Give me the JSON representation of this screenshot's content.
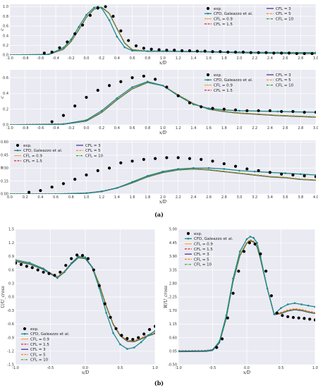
{
  "figure": {
    "caption_a": "(a)",
    "caption_b": "(b)"
  },
  "colors": {
    "exp": "#000000",
    "cfd": "#1b8a8e",
    "cfl09": "#f5a142",
    "cfl15": "#d62728",
    "cfl3": "#3a2a8a",
    "cfl5": "#ff7f0e",
    "cfl10": "#2ca02c",
    "panel_bg": "#eaeaf2",
    "grid": "#ffffff"
  },
  "legend_labels": {
    "exp": "exp.",
    "cfd": "CFD, Galeazzo et al.",
    "cfl09": "CFL = 0.9",
    "cfl15": "CFL = 1.5",
    "cfl3": "CFL = 3",
    "cfl5": "CFL = 5",
    "cfl10": "CFL = 10"
  },
  "chart_data": [
    {
      "id": "p1",
      "type": "line",
      "xlabel": "x/D",
      "ylabel": "c",
      "xlim": [
        -1.0,
        3.0
      ],
      "ylim": [
        0,
        1.05
      ],
      "xticks": [
        "-1.0",
        "-0.8",
        "-0.6",
        "-0.4",
        "-0.2",
        "0.0",
        "0.2",
        "0.4",
        "0.6",
        "0.8",
        "1.0",
        "1.2",
        "1.4",
        "1.6",
        "1.8",
        "2.0",
        "2.2",
        "2.4",
        "2.6",
        "2.8",
        "3.0"
      ],
      "yticks": [
        "0.0",
        "0.2",
        "0.4",
        "0.6",
        "0.8",
        "1.0"
      ],
      "grid": true,
      "legend": "upper-right",
      "exp": {
        "x": [
          -0.55,
          -0.45,
          -0.35,
          -0.25,
          -0.15,
          -0.05,
          0.05,
          0.15,
          0.25,
          0.35,
          0.45,
          0.55,
          0.65,
          0.75,
          0.85,
          0.95,
          1.05,
          1.15,
          1.25,
          1.35,
          1.45,
          1.55,
          1.65,
          1.75,
          1.85,
          1.95,
          2.05,
          2.15,
          2.25,
          2.35,
          2.45,
          2.55,
          2.65,
          2.75,
          2.85,
          2.95
        ],
        "y": [
          0.04,
          0.06,
          0.15,
          0.27,
          0.44,
          0.62,
          0.82,
          0.97,
          1.0,
          0.8,
          0.5,
          0.3,
          0.19,
          0.14,
          0.12,
          0.11,
          0.1,
          0.1,
          0.09,
          0.09,
          0.08,
          0.08,
          0.07,
          0.07,
          0.06,
          0.06,
          0.06,
          0.05,
          0.05,
          0.05,
          0.04,
          0.04,
          0.04,
          0.03,
          0.03,
          0.03
        ]
      },
      "cfd": {
        "x": [
          -1.0,
          -0.5,
          -0.3,
          -0.2,
          -0.1,
          0.0,
          0.1,
          0.15,
          0.2,
          0.3,
          0.4,
          0.5,
          0.6,
          0.8,
          1.0,
          1.5,
          2.0,
          2.5,
          3.0
        ],
        "y": [
          0.0,
          0.01,
          0.15,
          0.32,
          0.58,
          0.83,
          0.98,
          1.0,
          0.97,
          0.72,
          0.38,
          0.16,
          0.09,
          0.08,
          0.08,
          0.07,
          0.06,
          0.05,
          0.05
        ]
      },
      "cfl": {
        "x": [
          -1.0,
          -0.5,
          -0.3,
          -0.2,
          -0.1,
          0.0,
          0.1,
          0.2,
          0.3,
          0.4,
          0.5,
          0.6,
          0.8,
          1.0,
          1.5,
          2.0,
          2.5,
          3.0
        ],
        "y": [
          0.0,
          0.01,
          0.12,
          0.28,
          0.52,
          0.78,
          0.95,
          0.99,
          0.86,
          0.55,
          0.25,
          0.11,
          0.08,
          0.08,
          0.07,
          0.05,
          0.04,
          0.03
        ]
      }
    },
    {
      "id": "p2",
      "type": "line",
      "xlabel": "x/D",
      "ylabel": "c",
      "xlim": [
        -1.0,
        3.0
      ],
      "ylim": [
        0,
        0.7
      ],
      "xticks": [
        "-1.0",
        "-0.8",
        "-0.6",
        "-0.4",
        "-0.2",
        "0.0",
        "0.2",
        "0.4",
        "0.6",
        "0.8",
        "1.0",
        "1.2",
        "1.4",
        "1.6",
        "1.8",
        "2.0",
        "2.2",
        "2.4",
        "2.6",
        "2.8",
        "3.0"
      ],
      "yticks": [
        "0.0",
        "0.2",
        "0.4",
        "0.6"
      ],
      "grid": true,
      "legend": "upper-right",
      "exp": {
        "x": [
          -0.45,
          -0.3,
          -0.15,
          0.0,
          0.15,
          0.3,
          0.45,
          0.6,
          0.75,
          0.9,
          1.05,
          1.2,
          1.35,
          1.5,
          1.65,
          1.8,
          1.95,
          2.1,
          2.25,
          2.4,
          2.55,
          2.7,
          2.85,
          3.0
        ],
        "y": [
          0.04,
          0.12,
          0.24,
          0.35,
          0.44,
          0.5,
          0.55,
          0.6,
          0.62,
          0.58,
          0.48,
          0.37,
          0.28,
          0.23,
          0.21,
          0.2,
          0.19,
          0.18,
          0.18,
          0.18,
          0.17,
          0.17,
          0.16,
          0.16
        ]
      },
      "cfd": {
        "x": [
          -1.0,
          -0.3,
          0.0,
          0.2,
          0.4,
          0.6,
          0.8,
          1.0,
          1.2,
          1.4,
          1.6,
          1.8,
          2.0,
          2.5,
          3.0
        ],
        "y": [
          0.0,
          0.01,
          0.06,
          0.18,
          0.34,
          0.48,
          0.55,
          0.5,
          0.37,
          0.26,
          0.21,
          0.19,
          0.18,
          0.17,
          0.16
        ]
      },
      "cfl": {
        "x": [
          -1.0,
          -0.3,
          0.0,
          0.2,
          0.4,
          0.6,
          0.8,
          1.0,
          1.2,
          1.4,
          1.6,
          1.8,
          2.0,
          2.5,
          3.0
        ],
        "y": [
          0.0,
          0.01,
          0.05,
          0.16,
          0.32,
          0.46,
          0.54,
          0.5,
          0.38,
          0.27,
          0.2,
          0.17,
          0.15,
          0.12,
          0.1
        ]
      }
    },
    {
      "id": "p3",
      "type": "line",
      "xlabel": "x/D",
      "ylabel": "c",
      "xlim": [
        0.0,
        4.0
      ],
      "ylim": [
        0,
        0.62
      ],
      "xticks": [
        "0.0",
        "0.2",
        "0.4",
        "0.6",
        "0.8",
        "1.0",
        "1.2",
        "1.4",
        "1.6",
        "1.8",
        "2.0",
        "2.2",
        "2.4",
        "2.6",
        "2.8",
        "3.0",
        "3.2",
        "3.4",
        "3.6",
        "3.8",
        "4.0"
      ],
      "yticks": [
        "0.00",
        "0.15",
        "0.30",
        "0.45",
        "0.60"
      ],
      "grid": true,
      "legend": "upper-left",
      "exp": {
        "x": [
          0.25,
          0.4,
          0.55,
          0.7,
          0.85,
          1.0,
          1.15,
          1.3,
          1.45,
          1.6,
          1.75,
          1.9,
          2.05,
          2.2,
          2.35,
          2.5,
          2.65,
          2.8,
          2.95,
          3.1,
          3.25,
          3.4,
          3.55,
          3.7,
          3.85,
          4.0
        ],
        "y": [
          0.02,
          0.04,
          0.08,
          0.12,
          0.17,
          0.22,
          0.27,
          0.3,
          0.36,
          0.38,
          0.4,
          0.41,
          0.42,
          0.42,
          0.41,
          0.4,
          0.38,
          0.35,
          0.32,
          0.29,
          0.27,
          0.25,
          0.23,
          0.22,
          0.21,
          0.2
        ]
      },
      "cfd": {
        "x": [
          0.0,
          0.6,
          1.0,
          1.2,
          1.4,
          1.6,
          1.8,
          2.0,
          2.2,
          2.4,
          2.6,
          2.8,
          3.0,
          3.2,
          3.4,
          3.6,
          3.8,
          4.0
        ],
        "y": [
          0.0,
          0.0,
          0.01,
          0.03,
          0.07,
          0.14,
          0.21,
          0.26,
          0.29,
          0.3,
          0.3,
          0.29,
          0.27,
          0.26,
          0.25,
          0.24,
          0.23,
          0.22
        ]
      },
      "cfl": {
        "x": [
          0.0,
          0.6,
          1.0,
          1.2,
          1.4,
          1.6,
          1.8,
          2.0,
          2.2,
          2.4,
          2.6,
          2.8,
          3.0,
          3.2,
          3.4,
          3.6,
          3.8,
          4.0
        ],
        "y": [
          0.0,
          0.0,
          0.01,
          0.03,
          0.07,
          0.13,
          0.2,
          0.25,
          0.28,
          0.29,
          0.28,
          0.26,
          0.24,
          0.22,
          0.2,
          0.19,
          0.17,
          0.16
        ]
      }
    },
    {
      "id": "p4",
      "type": "line",
      "xlabel": "x/D",
      "ylabel": "U/U_cross",
      "xlim": [
        -1.0,
        1.0
      ],
      "ylim": [
        -1.5,
        1.5
      ],
      "xticks": [
        "-1.0",
        "-0.5",
        "0.0",
        "0.5",
        "1.0"
      ],
      "yticks": [
        "-1.5",
        "-1.2",
        "-0.9",
        "-0.6",
        "-0.3",
        "0.0",
        "0.3",
        "0.6",
        "0.9",
        "1.2",
        "1.5"
      ],
      "grid": true,
      "legend": "lower-left",
      "exp": {
        "x": [
          -1.0,
          -0.92,
          -0.84,
          -0.76,
          -0.68,
          -0.6,
          -0.52,
          -0.44,
          -0.36,
          -0.28,
          -0.2,
          -0.12,
          -0.04,
          0.04,
          0.12,
          0.2,
          0.28,
          0.36,
          0.44,
          0.52,
          0.6,
          0.68,
          0.76,
          0.84,
          0.92,
          1.0
        ],
        "y": [
          0.75,
          0.72,
          0.68,
          0.65,
          0.6,
          0.55,
          0.52,
          0.48,
          0.55,
          0.7,
          0.85,
          0.93,
          0.92,
          0.85,
          0.6,
          0.25,
          -0.15,
          -0.45,
          -0.7,
          -0.85,
          -0.92,
          -0.94,
          -0.9,
          -0.82,
          -0.72,
          -0.65
        ]
      },
      "cfd": {
        "x": [
          -1.0,
          -0.8,
          -0.6,
          -0.5,
          -0.4,
          -0.3,
          -0.2,
          -0.1,
          0.0,
          0.1,
          0.2,
          0.3,
          0.4,
          0.5,
          0.6,
          0.7,
          0.8,
          0.9,
          1.0
        ],
        "y": [
          0.82,
          0.76,
          0.63,
          0.52,
          0.42,
          0.55,
          0.75,
          0.9,
          0.88,
          0.65,
          0.2,
          -0.35,
          -0.8,
          -1.05,
          -1.15,
          -1.12,
          -1.0,
          -0.85,
          -0.75
        ]
      },
      "cfl": {
        "x": [
          -1.0,
          -0.8,
          -0.6,
          -0.5,
          -0.4,
          -0.3,
          -0.2,
          -0.1,
          0.0,
          0.1,
          0.2,
          0.3,
          0.4,
          0.5,
          0.6,
          0.7,
          0.8,
          0.9,
          1.0
        ],
        "y": [
          0.8,
          0.74,
          0.62,
          0.52,
          0.44,
          0.56,
          0.74,
          0.88,
          0.86,
          0.66,
          0.28,
          -0.2,
          -0.6,
          -0.85,
          -0.97,
          -0.98,
          -0.92,
          -0.85,
          -0.8
        ]
      }
    },
    {
      "id": "p5",
      "type": "line",
      "xlabel": "x/D",
      "ylabel": "W/U_cross",
      "xlim": [
        -1.0,
        1.0
      ],
      "ylim": [
        -0.5,
        5.0
      ],
      "xticks": [
        "-1.0",
        "-0.5",
        "0.0",
        "0.5",
        "1.0"
      ],
      "yticks": [
        "-0.50",
        "0.05",
        "0.60",
        "1.15",
        "1.70",
        "2.25",
        "2.80",
        "3.35",
        "3.90",
        "4.45",
        "5.00"
      ],
      "grid": true,
      "legend": "upper-left",
      "exp": {
        "x": [
          -0.44,
          -0.36,
          -0.28,
          -0.2,
          -0.12,
          -0.04,
          0.04,
          0.12,
          0.2,
          0.28,
          0.36,
          0.44,
          0.52,
          0.6,
          0.68,
          0.76,
          0.84,
          0.92,
          1.0
        ],
        "y": [
          0.2,
          0.55,
          1.4,
          2.4,
          3.3,
          4.1,
          4.45,
          4.4,
          4.0,
          3.3,
          2.3,
          1.6,
          1.5,
          1.45,
          1.42,
          1.4,
          1.38,
          1.35,
          1.32
        ]
      },
      "cfd": {
        "x": [
          -1.0,
          -0.6,
          -0.5,
          -0.4,
          -0.3,
          -0.2,
          -0.1,
          0.0,
          0.05,
          0.1,
          0.15,
          0.2,
          0.3,
          0.4,
          0.5,
          0.6,
          0.7,
          0.8,
          0.9,
          1.0
        ],
        "y": [
          0.05,
          0.06,
          0.1,
          0.45,
          1.5,
          3.0,
          4.1,
          4.6,
          4.7,
          4.65,
          4.45,
          3.9,
          2.6,
          1.55,
          1.8,
          1.95,
          2.0,
          1.95,
          1.9,
          1.85
        ]
      },
      "cfl": {
        "x": [
          -1.0,
          -0.6,
          -0.5,
          -0.4,
          -0.3,
          -0.2,
          -0.1,
          0.0,
          0.05,
          0.1,
          0.15,
          0.2,
          0.3,
          0.4,
          0.5,
          0.6,
          0.7,
          0.8,
          0.9,
          1.0
        ],
        "y": [
          0.05,
          0.06,
          0.1,
          0.4,
          1.4,
          2.9,
          3.95,
          4.45,
          4.55,
          4.5,
          4.3,
          3.8,
          2.6,
          1.55,
          1.6,
          1.7,
          1.75,
          1.72,
          1.65,
          1.6
        ]
      }
    }
  ]
}
